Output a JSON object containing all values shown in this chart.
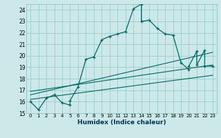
{
  "xlabel": "Humidex (Indice chaleur)",
  "bg_color": "#cce8e8",
  "grid_color": "#99cccc",
  "line_color": "#006666",
  "xlim": [
    -0.5,
    23.5
  ],
  "ylim": [
    15,
    24.5
  ],
  "yticks": [
    15,
    16,
    17,
    18,
    19,
    20,
    21,
    22,
    23,
    24
  ],
  "xtick_labels": [
    "0",
    "1",
    "2",
    "3",
    "4",
    "5",
    "6",
    "7",
    "8",
    "9",
    "10",
    "11",
    "12",
    "13",
    "14",
    "15",
    "16",
    "17",
    "18",
    "19",
    "20",
    "21",
    "22",
    "23"
  ],
  "main_x": [
    0,
    1,
    2,
    3,
    4,
    5,
    5,
    6,
    7,
    8,
    9,
    10,
    11,
    12,
    13,
    14,
    14,
    15,
    16,
    17,
    18,
    19,
    20,
    20,
    21,
    21,
    22,
    22,
    23
  ],
  "main_y": [
    16.0,
    15.3,
    16.3,
    16.6,
    15.9,
    15.7,
    16.1,
    17.3,
    19.7,
    19.9,
    21.4,
    21.7,
    21.9,
    22.1,
    24.1,
    24.5,
    23.0,
    23.1,
    22.4,
    21.9,
    21.8,
    19.4,
    18.8,
    19.1,
    20.4,
    19.2,
    20.5,
    19.1,
    19.1
  ],
  "line1_x": [
    0,
    23
  ],
  "line1_y": [
    16.2,
    18.3
  ],
  "line2_x": [
    0,
    23
  ],
  "line2_y": [
    16.6,
    20.3
  ],
  "line3_x": [
    0,
    23
  ],
  "line3_y": [
    16.9,
    19.2
  ]
}
